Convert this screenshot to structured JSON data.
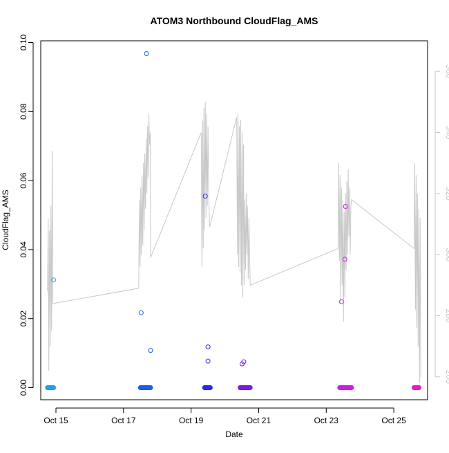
{
  "chart_data": {
    "type": "scatter",
    "title": "ATOM3 Northbound CloudFlag_AMS",
    "xlabel": "Date",
    "ylabel": "CloudFlag_AMS",
    "y2label": "",
    "xlim": [
      14.55,
      26.0
    ],
    "ylim": [
      -0.0035,
      0.1005
    ],
    "y2lim": [
      252.5,
      370.0
    ],
    "x_ticks": [
      {
        "value": 15,
        "label": "Oct 15"
      },
      {
        "value": 17,
        "label": "Oct 17"
      },
      {
        "value": 19,
        "label": "Oct 19"
      },
      {
        "value": 21,
        "label": "Oct 21"
      },
      {
        "value": 23,
        "label": "Oct 23"
      },
      {
        "value": 25,
        "label": "Oct 25"
      }
    ],
    "y_ticks": [
      {
        "value": 0.0,
        "label": "0.00"
      },
      {
        "value": 0.02,
        "label": "0.02"
      },
      {
        "value": 0.04,
        "label": "0.04"
      },
      {
        "value": 0.06,
        "label": "0.06"
      },
      {
        "value": 0.08,
        "label": "0.08"
      },
      {
        "value": 0.1,
        "label": "0.10"
      }
    ],
    "y2_ticks": [
      {
        "value": 260,
        "label": "260"
      },
      {
        "value": 280,
        "label": "280"
      },
      {
        "value": 300,
        "label": "300"
      },
      {
        "value": 320,
        "label": "320"
      },
      {
        "value": 340,
        "label": "340"
      },
      {
        "value": 360,
        "label": "360"
      }
    ],
    "grid": false,
    "legend": "none",
    "colors": {
      "flight1": "#1aa3e8",
      "flight2": "#1a5fe8",
      "flight3": "#2a2ae8",
      "flight4": "#7a1ae8",
      "flight5": "#d21ae8",
      "flight6": "#e81ac8",
      "background_line": "#c8c8c8"
    },
    "flights": [
      {
        "color_key": "flight1",
        "x_range": [
          14.75,
          14.93
        ],
        "points": [
          {
            "x": 14.93,
            "y": 0.0312
          }
        ]
      },
      {
        "color_key": "flight2",
        "x_range": [
          17.5,
          17.8
        ],
        "points": [
          {
            "x": 17.68,
            "y": 0.0968
          },
          {
            "x": 17.52,
            "y": 0.0217
          },
          {
            "x": 17.8,
            "y": 0.0108
          }
        ]
      },
      {
        "color_key": "flight3",
        "x_range": [
          19.4,
          19.57
        ],
        "points": [
          {
            "x": 19.42,
            "y": 0.0555
          },
          {
            "x": 19.5,
            "y": 0.0118
          },
          {
            "x": 19.5,
            "y": 0.0077
          }
        ]
      },
      {
        "color_key": "flight4",
        "x_range": [
          20.45,
          20.75
        ],
        "points": [
          {
            "x": 20.51,
            "y": 0.0069
          },
          {
            "x": 20.56,
            "y": 0.0075
          }
        ]
      },
      {
        "color_key": "flight5",
        "x_range": [
          23.4,
          23.75
        ],
        "points": [
          {
            "x": 23.45,
            "y": 0.0249
          },
          {
            "x": 23.55,
            "y": 0.0372
          },
          {
            "x": 23.57,
            "y": 0.0525
          }
        ]
      },
      {
        "color_key": "flight6",
        "x_range": [
          25.6,
          25.75
        ],
        "points": []
      }
    ],
    "secondary_series": {
      "name": "",
      "axis": "right",
      "points": [
        [
          14.75,
          288
        ],
        [
          14.77,
          312
        ],
        [
          14.79,
          262
        ],
        [
          14.81,
          308
        ],
        [
          14.83,
          270
        ],
        [
          14.85,
          316
        ],
        [
          14.87,
          275
        ],
        [
          14.89,
          334
        ],
        [
          14.91,
          284
        ],
        [
          17.45,
          289
        ],
        [
          17.47,
          318
        ],
        [
          17.49,
          296
        ],
        [
          17.51,
          322
        ],
        [
          17.53,
          300
        ],
        [
          17.55,
          326
        ],
        [
          17.57,
          303
        ],
        [
          17.59,
          330
        ],
        [
          17.61,
          308
        ],
        [
          17.63,
          333
        ],
        [
          17.65,
          315
        ],
        [
          17.67,
          338
        ],
        [
          17.69,
          320
        ],
        [
          17.71,
          342
        ],
        [
          17.73,
          325
        ],
        [
          17.75,
          346
        ],
        [
          17.77,
          336
        ],
        [
          17.79,
          340
        ],
        [
          17.8,
          299
        ],
        [
          19.3,
          340
        ],
        [
          19.32,
          296
        ],
        [
          19.34,
          344
        ],
        [
          19.36,
          302
        ],
        [
          19.38,
          348
        ],
        [
          19.4,
          308
        ],
        [
          19.42,
          350
        ],
        [
          19.44,
          312
        ],
        [
          19.46,
          346
        ],
        [
          19.48,
          316
        ],
        [
          19.5,
          342
        ],
        [
          19.52,
          320
        ],
        [
          19.55,
          309
        ],
        [
          20.35,
          345
        ],
        [
          20.37,
          300
        ],
        [
          20.39,
          346
        ],
        [
          20.41,
          296
        ],
        [
          20.43,
          342
        ],
        [
          20.45,
          294
        ],
        [
          20.47,
          344
        ],
        [
          20.49,
          290
        ],
        [
          20.51,
          340
        ],
        [
          20.53,
          286
        ],
        [
          20.55,
          336
        ],
        [
          20.57,
          290
        ],
        [
          20.59,
          318
        ],
        [
          20.61,
          295
        ],
        [
          20.63,
          320
        ],
        [
          20.65,
          300
        ],
        [
          20.67,
          316
        ],
        [
          20.69,
          292
        ],
        [
          20.71,
          312
        ],
        [
          20.75,
          290
        ],
        [
          23.35,
          302
        ],
        [
          23.37,
          330
        ],
        [
          23.39,
          298
        ],
        [
          23.41,
          326
        ],
        [
          23.43,
          284
        ],
        [
          23.45,
          322
        ],
        [
          23.47,
          290
        ],
        [
          23.49,
          318
        ],
        [
          23.51,
          278
        ],
        [
          23.53,
          314
        ],
        [
          23.55,
          286
        ],
        [
          23.57,
          320
        ],
        [
          23.59,
          295
        ],
        [
          23.61,
          324
        ],
        [
          23.63,
          300
        ],
        [
          23.65,
          328
        ],
        [
          23.67,
          306
        ],
        [
          23.69,
          322
        ],
        [
          23.71,
          300
        ],
        [
          23.73,
          316
        ],
        [
          23.75,
          318
        ],
        [
          25.6,
          302
        ],
        [
          25.62,
          330
        ],
        [
          25.64,
          282
        ],
        [
          25.66,
          326
        ],
        [
          25.68,
          276
        ],
        [
          25.7,
          320
        ],
        [
          25.72,
          270
        ],
        [
          25.74,
          315
        ],
        [
          25.76,
          258
        ],
        [
          25.78,
          312
        ],
        [
          25.8,
          260
        ]
      ]
    }
  }
}
